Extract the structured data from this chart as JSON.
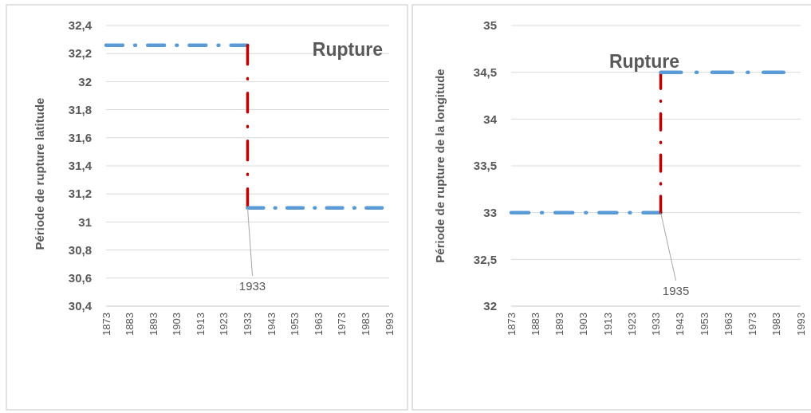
{
  "chart_data": [
    {
      "type": "line",
      "ylabel": "Période de rupture latitude",
      "xlim": [
        1873,
        1993
      ],
      "xticks": [
        1873,
        1883,
        1893,
        1903,
        1913,
        1923,
        1933,
        1943,
        1953,
        1963,
        1973,
        1983,
        1993
      ],
      "ylim": [
        30.4,
        32.4
      ],
      "yticks": [
        {
          "value": 30.4,
          "label": "30,4"
        },
        {
          "value": 30.6,
          "label": "30,6"
        },
        {
          "value": 30.8,
          "label": "30,8"
        },
        31,
        {
          "value": 31.2,
          "label": "31,2"
        },
        {
          "value": 31.4,
          "label": "31,4"
        },
        {
          "value": 31.6,
          "label": "31,6"
        },
        {
          "value": 31.8,
          "label": "31,8"
        },
        32,
        {
          "value": 32.2,
          "label": "32,2"
        },
        {
          "value": 32.4,
          "label": "32,4"
        }
      ],
      "grid": "y",
      "line_style": "dashed",
      "series": [
        {
          "color": "#5b9bd5",
          "x": [
            1873,
            1933
          ],
          "values": [
            32.26,
            32.26
          ]
        },
        {
          "color": "#c00000",
          "x": [
            1933,
            1933
          ],
          "values": [
            32.26,
            31.1
          ]
        },
        {
          "color": "#5b9bd5",
          "x": [
            1933,
            1990
          ],
          "values": [
            31.1,
            31.1
          ]
        }
      ],
      "annotations": [
        "Rupture",
        {
          "text": "1933",
          "x": 1933,
          "y": 31.1
        }
      ]
    },
    {
      "type": "line",
      "ylabel": "Période de rupture de la longitude",
      "xlim": [
        1873,
        1993
      ],
      "xticks": [
        1873,
        1883,
        1893,
        1903,
        1913,
        1923,
        1933,
        1943,
        1953,
        1963,
        1973,
        1983,
        1993
      ],
      "ylim": [
        32,
        35
      ],
      "yticks": [
        32,
        {
          "value": 32.5,
          "label": "32,5"
        },
        33,
        {
          "value": 33.5,
          "label": "33,5"
        },
        34,
        {
          "value": 34.5,
          "label": "34,5"
        },
        35
      ],
      "grid": "y",
      "line_style": "dashed",
      "series": [
        {
          "color": "#5b9bd5",
          "x": [
            1873,
            1935
          ],
          "values": [
            33,
            33
          ]
        },
        {
          "color": "#c00000",
          "x": [
            1935,
            1935
          ],
          "values": [
            33,
            34.5
          ]
        },
        {
          "color": "#5b9bd5",
          "x": [
            1935,
            1986
          ],
          "values": [
            34.5,
            34.5
          ]
        }
      ],
      "annotations": [
        "Rupture",
        {
          "text": "1935",
          "x": 1935,
          "y": 33
        }
      ]
    }
  ]
}
